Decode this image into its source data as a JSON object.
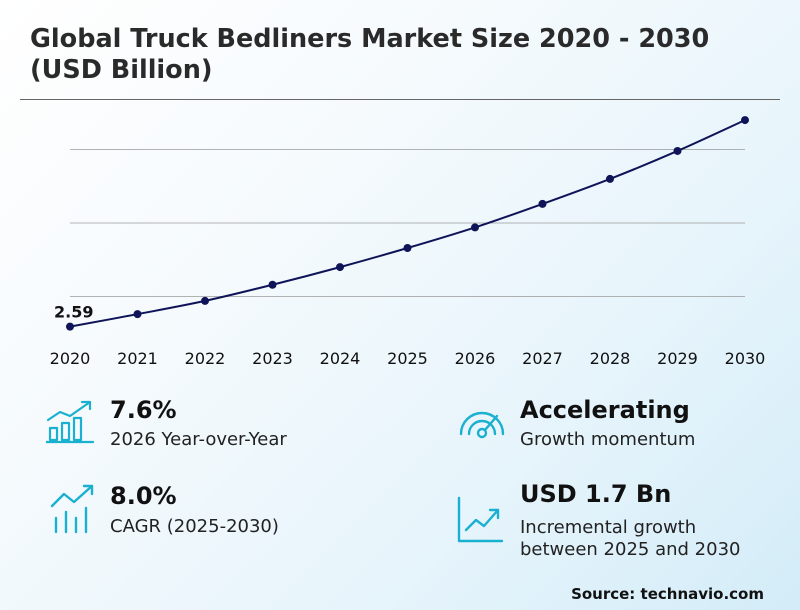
{
  "title_line1": "Global Truck Bedliners Market Size 2020 - 2030",
  "title_line2": "(USD Billion)",
  "chart_data": {
    "type": "line",
    "title": "Global Truck Bedliners Market Size 2020 - 2030 (USD Billion)",
    "xlabel": "",
    "ylabel": "",
    "x": [
      "2020",
      "2021",
      "2022",
      "2023",
      "2024",
      "2025",
      "2026",
      "2027",
      "2028",
      "2029",
      "2030"
    ],
    "series": [
      {
        "values": [
          2.59,
          2.76,
          2.94,
          3.16,
          3.4,
          3.66,
          3.94,
          4.26,
          4.6,
          4.98,
          5.4
        ],
        "color": "#0f1458"
      }
    ],
    "data_labels": [
      {
        "index": 0,
        "text": "2.59"
      }
    ],
    "ylim": [
      2.0,
      6.0
    ],
    "grid": true,
    "legend": "none"
  },
  "stats": {
    "yoy": {
      "value": "7.6%",
      "label": "2026 Year-over-Year",
      "icon": "bar-growth-icon"
    },
    "cagr": {
      "value": "8.0%",
      "label": "CAGR (2025-2030)",
      "icon": "trend-bars-icon"
    },
    "momentum": {
      "value": "Accelerating",
      "label": "Growth momentum",
      "icon": "gauge-icon"
    },
    "incremental": {
      "value": "USD 1.7 Bn",
      "label_line1": "Incremental growth",
      "label_line2": "between 2025 and 2030",
      "icon": "line-chart-icon"
    }
  },
  "source": "Source: technavio.com",
  "colors": {
    "accent": "#1ab0d0",
    "line": "#0f1458",
    "grid": "#9a9a9a"
  }
}
